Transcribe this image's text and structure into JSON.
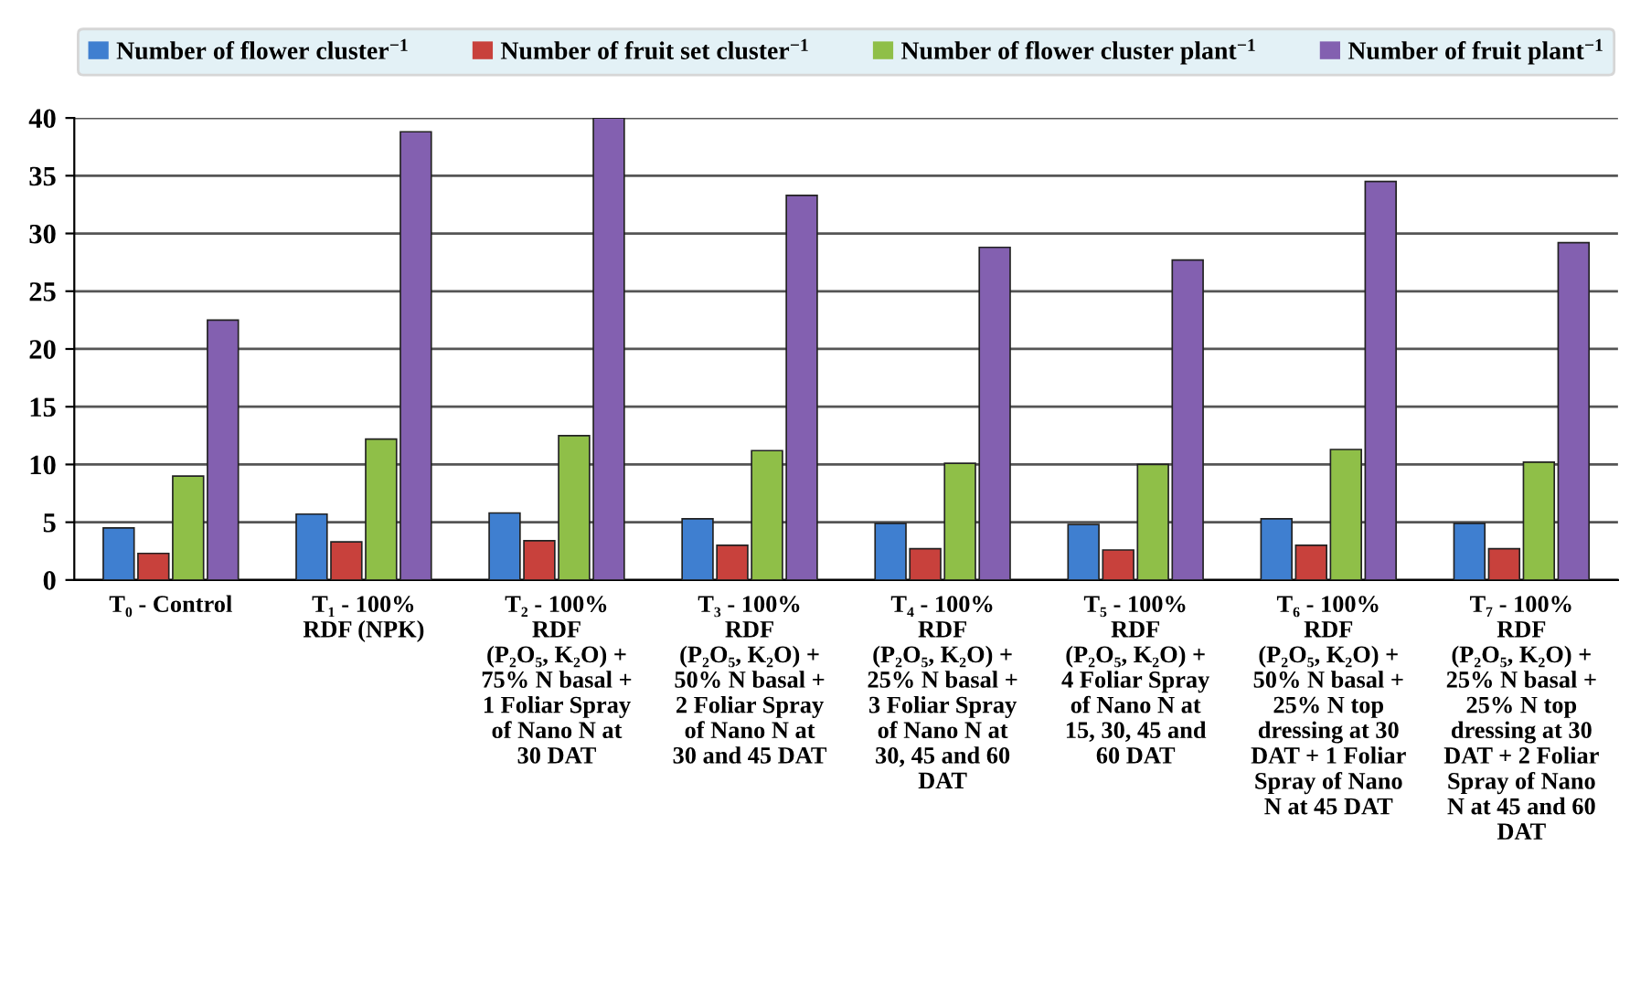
{
  "chart_data": {
    "type": "bar",
    "categories": [
      "T₀ - Control",
      "T₁ - 100%\nRDF (NPK)",
      "T₂ - 100%\nRDF\n(P₂O₅, K₂O) +\n75% N basal +\n1 Foliar Spray\nof Nano N at\n30 DAT",
      "T₃ - 100%\nRDF\n(P₂O₅, K₂O) +\n50% N basal +\n2 Foliar Spray\nof Nano N at\n30 and 45 DAT",
      "T₄ - 100%\nRDF\n(P₂O₅, K₂O) +\n25% N basal +\n3 Foliar Spray\nof Nano N at\n30, 45 and 60\nDAT",
      "T₅ - 100%\nRDF\n(P₂O₅, K₂O) +\n4 Foliar Spray\nof Nano N at\n15, 30, 45 and\n60 DAT",
      "T₆ - 100%\nRDF\n(P₂O₅, K₂O) +\n50% N basal +\n25% N top\ndressing at 30\nDAT + 1 Foliar\nSpray of Nano\nN at 45 DAT",
      "T₇ - 100%\nRDF\n(P₂O₅, K₂O) +\n25% N basal +\n25% N top\ndressing at 30\nDAT + 2 Foliar\nSpray of Nano\nN at 45 and 60\nDAT"
    ],
    "series": [
      {
        "name": "Number of flower cluster$^{−1}$",
        "color": "#3f7fd0",
        "values": [
          4.5,
          5.7,
          5.8,
          5.3,
          4.9,
          4.8,
          5.3,
          4.9
        ]
      },
      {
        "name": "Number of fruit set cluster$^{−1}$",
        "color": "#c8413c",
        "values": [
          2.3,
          3.3,
          3.4,
          3.0,
          2.7,
          2.6,
          3.0,
          2.7
        ]
      },
      {
        "name": "Number of flower cluster plant$^{−1}$",
        "color": "#8fbf48",
        "values": [
          9.0,
          12.2,
          12.5,
          11.2,
          10.1,
          10.0,
          11.3,
          10.2
        ]
      },
      {
        "name": "Number of fruit plant$^{−1}$",
        "color": "#8360b0",
        "values": [
          22.5,
          38.8,
          40.0,
          33.3,
          28.8,
          27.7,
          34.5,
          29.2
        ]
      }
    ],
    "ylim": [
      0,
      40
    ],
    "yticks": [
      0,
      5,
      10,
      15,
      20,
      25,
      30,
      35,
      40
    ],
    "grid": "y",
    "legend": "top"
  }
}
